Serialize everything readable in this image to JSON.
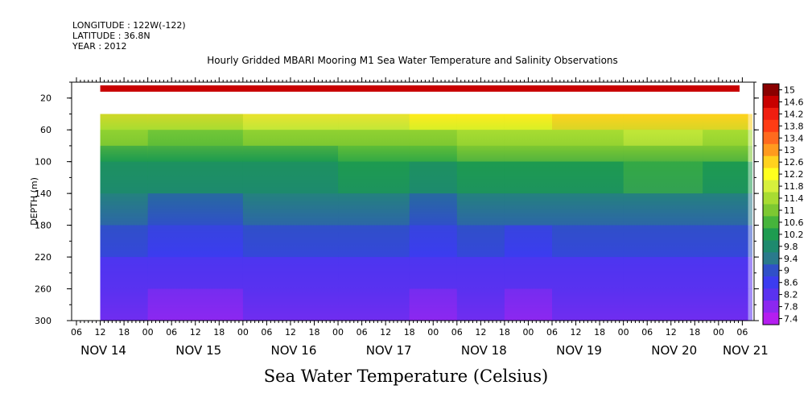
{
  "meta": {
    "longitude": "LONGITUDE : 122W(-122)",
    "latitude": "LATITUDE : 36.8N",
    "year": "YEAR : 2012"
  },
  "chart_data": {
    "type": "heatmap",
    "title": "Hourly Gridded MBARI Mooring M1 Sea Water Temperature and Salinity Observations",
    "xlabel": "Sea Water Temperature (Celsius)",
    "ylabel": "DEPTH (m)",
    "x_tick_labels": [
      "06",
      "12",
      "18",
      "00",
      "06",
      "12",
      "18",
      "00",
      "06",
      "12",
      "18",
      "00",
      "06",
      "12",
      "18",
      "00",
      "06",
      "12",
      "18",
      "00",
      "06",
      "12",
      "18",
      "00",
      "06",
      "12",
      "18",
      "00",
      "06"
    ],
    "x_day_labels": [
      "NOV 14",
      "NOV 15",
      "NOV 16",
      "NOV 17",
      "NOV 18",
      "NOV 19",
      "NOV 20",
      "NOV 21"
    ],
    "y_tick_labels": [
      "20",
      "60",
      "100",
      "140",
      "180",
      "220",
      "260",
      "300"
    ],
    "y_ticks": [
      20,
      60,
      100,
      140,
      180,
      220,
      260,
      300
    ],
    "ylim": [
      300,
      0
    ],
    "colorbar_labels": [
      "15",
      "14.6",
      "14.2",
      "13.8",
      "13.4",
      "13",
      "12.6",
      "12.2",
      "11.8",
      "11.4",
      "11",
      "10.6",
      "10.2",
      "9.8",
      "9.4",
      "9",
      "8.6",
      "8.2",
      "7.8",
      "7.4"
    ],
    "colorbar_values": [
      15,
      14.6,
      14.2,
      13.8,
      13.4,
      13,
      12.6,
      12.2,
      11.8,
      11.4,
      11,
      10.6,
      10.2,
      9.8,
      9.4,
      9,
      8.6,
      8.2,
      7.8,
      7.4
    ],
    "data_start_time": "NOV 14 12",
    "data_end_time": "NOV 21 04",
    "depths_m": [
      10,
      40,
      60,
      80,
      100,
      140,
      180,
      220,
      260,
      300
    ],
    "profile_times": [
      "NOV 14 12",
      "NOV 15 12",
      "NOV 16 12",
      "NOV 17 12",
      "NOV 18 00",
      "NOV 18 12",
      "NOV 19 00",
      "NOV 19 12",
      "NOV 20 12",
      "NOV 21 04"
    ],
    "temperature_profiles": [
      [
        14.6,
        12.2,
        11.0,
        10.6,
        10.2,
        9.6,
        9.0,
        8.6,
        8.2,
        7.8
      ],
      [
        14.6,
        12.2,
        10.8,
        10.2,
        9.8,
        9.4,
        8.8,
        8.4,
        8.0,
        7.6
      ],
      [
        14.6,
        12.4,
        11.0,
        10.6,
        10.2,
        9.6,
        9.0,
        8.6,
        8.2,
        7.8
      ],
      [
        14.6,
        12.6,
        11.2,
        10.8,
        10.4,
        9.8,
        9.2,
        8.6,
        8.2,
        7.8
      ],
      [
        14.6,
        12.6,
        11.4,
        10.8,
        10.2,
        9.4,
        8.8,
        8.4,
        8.0,
        7.6
      ],
      [
        14.6,
        13.0,
        11.6,
        11.0,
        10.6,
        9.8,
        9.2,
        8.6,
        8.2,
        7.8
      ],
      [
        14.6,
        12.8,
        11.8,
        11.2,
        10.6,
        9.6,
        9.0,
        8.4,
        8.0,
        7.6
      ],
      [
        14.6,
        13.4,
        12.0,
        11.2,
        10.6,
        9.8,
        9.2,
        8.6,
        8.2,
        7.8
      ],
      [
        14.6,
        13.4,
        12.0,
        11.4,
        10.8,
        10.0,
        9.2,
        8.6,
        8.2,
        7.8
      ],
      [
        14.6,
        13.2,
        11.8,
        11.2,
        10.6,
        9.8,
        9.2,
        8.6,
        8.2,
        7.8
      ]
    ]
  }
}
